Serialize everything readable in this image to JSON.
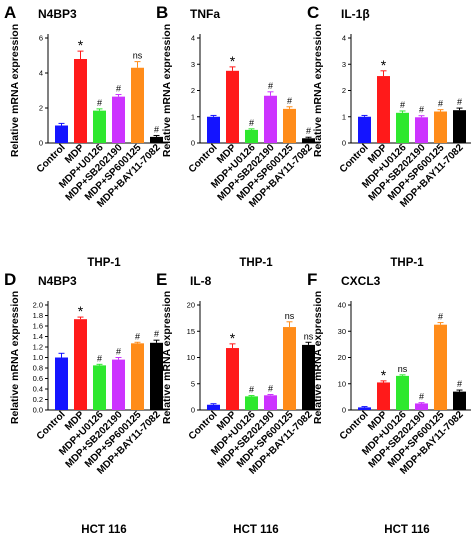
{
  "figure": {
    "colors": [
      "#1414ff",
      "#ff1a1a",
      "#2ee82e",
      "#cc33ff",
      "#ff8c1a",
      "#000000"
    ],
    "ylabel": "Relative mRNA expression",
    "categories": [
      "Control",
      "MDP",
      "MDP+U0126",
      "MDP+SB202190",
      "MDP+SP600125",
      "MDP+BAY11-7082"
    ]
  },
  "chart_data": [
    {
      "type": "bar",
      "letter": "A",
      "title": "N4BP3",
      "caption": "THP-1",
      "ylabel": "Relative mRNA expression",
      "categories": [
        "Control",
        "MDP",
        "MDP+U0126",
        "MDP+SB202190",
        "MDP+SP600125",
        "MDP+BAY11-7082"
      ],
      "values": [
        1.0,
        4.8,
        1.85,
        2.65,
        4.3,
        0.35
      ],
      "errors": [
        0.12,
        0.45,
        0.1,
        0.12,
        0.35,
        0.08
      ],
      "ylim": [
        0,
        6
      ],
      "yticks": [
        0,
        2,
        4,
        6
      ],
      "annotations": [
        "",
        "*",
        "#",
        "#",
        "ns",
        "#"
      ]
    },
    {
      "type": "bar",
      "letter": "B",
      "title": "TNFa",
      "caption": "THP-1",
      "ylabel": "Relative mRNA expression",
      "categories": [
        "Control",
        "MDP",
        "MDP+U0126",
        "MDP+SB202190",
        "MDP+SP600125",
        "MDP+BAY11-7082"
      ],
      "values": [
        1.0,
        2.75,
        0.5,
        1.8,
        1.3,
        0.18
      ],
      "errors": [
        0.05,
        0.15,
        0.04,
        0.15,
        0.08,
        0.04
      ],
      "ylim": [
        0,
        4
      ],
      "yticks": [
        0,
        1,
        2,
        3,
        4
      ],
      "annotations": [
        "",
        "*",
        "#",
        "#",
        "#",
        "#"
      ]
    },
    {
      "type": "bar",
      "letter": "C",
      "title": "IL-1β",
      "caption": "THP-1",
      "ylabel": "Relative mRNA expression",
      "categories": [
        "Control",
        "MDP",
        "MDP+U0126",
        "MDP+SB202190",
        "MDP+SP600125",
        "MDP+BAY11-7082"
      ],
      "values": [
        1.0,
        2.55,
        1.15,
        0.98,
        1.2,
        1.25
      ],
      "errors": [
        0.05,
        0.2,
        0.07,
        0.06,
        0.07,
        0.08
      ],
      "ylim": [
        0,
        4
      ],
      "yticks": [
        0,
        1,
        2,
        3,
        4
      ],
      "annotations": [
        "",
        "*",
        "#",
        "#",
        "#",
        "#"
      ]
    },
    {
      "type": "bar",
      "letter": "D",
      "title": "N4BP3",
      "caption": "HCT 116",
      "ylabel": "Relative mRNA expression",
      "categories": [
        "Control",
        "MDP",
        "MDP+U0126",
        "MDP+SB202190",
        "MDP+SP600125",
        "MDP+BAY11-7082"
      ],
      "values": [
        1.0,
        1.73,
        0.85,
        0.96,
        1.27,
        1.28
      ],
      "errors": [
        0.08,
        0.04,
        0.02,
        0.04,
        0.02,
        0.05
      ],
      "ylim": [
        0,
        2.0
      ],
      "yticks": [
        0,
        0.2,
        0.4,
        0.6,
        0.8,
        1.0,
        1.2,
        1.4,
        1.6,
        1.8,
        2.0
      ],
      "tick_labels": [
        "0.0",
        "0.2",
        "0.4",
        "0.6",
        "0.8",
        "1.0",
        "1.2",
        "1.4",
        "1.6",
        "1.8",
        "2.0"
      ],
      "annotations": [
        "",
        "*",
        "#",
        "#",
        "#",
        "#"
      ]
    },
    {
      "type": "bar",
      "letter": "E",
      "title": "IL-8",
      "caption": "HCT 116",
      "ylabel": "Relative mRNA expression",
      "categories": [
        "Control",
        "MDP",
        "MDP+U0126",
        "MDP+SB202190",
        "MDP+SP600125",
        "MDP+BAY11-7082"
      ],
      "values": [
        1.0,
        11.8,
        2.6,
        2.8,
        15.8,
        12.4
      ],
      "errors": [
        0.2,
        0.8,
        0.15,
        0.15,
        1.0,
        0.5
      ],
      "ylim": [
        0,
        20
      ],
      "yticks": [
        0,
        5,
        10,
        15,
        20
      ],
      "annotations": [
        "",
        "*",
        "#",
        "#",
        "ns",
        "ns"
      ]
    },
    {
      "type": "bar",
      "letter": "F",
      "title": "CXCL3",
      "caption": "HCT 116",
      "ylabel": "Relative mRNA expression",
      "categories": [
        "Control",
        "MDP",
        "MDP+U0126",
        "MDP+SB202190",
        "MDP+SP600125",
        "MDP+BAY11-7082"
      ],
      "values": [
        1.0,
        10.5,
        13.0,
        2.5,
        32.5,
        7.0
      ],
      "errors": [
        0.3,
        0.6,
        0.4,
        0.3,
        0.8,
        0.6
      ],
      "ylim": [
        0,
        40
      ],
      "yticks": [
        0,
        10,
        20,
        30,
        40
      ],
      "annotations": [
        "",
        "*",
        "ns",
        "#",
        "#",
        "#"
      ]
    }
  ]
}
